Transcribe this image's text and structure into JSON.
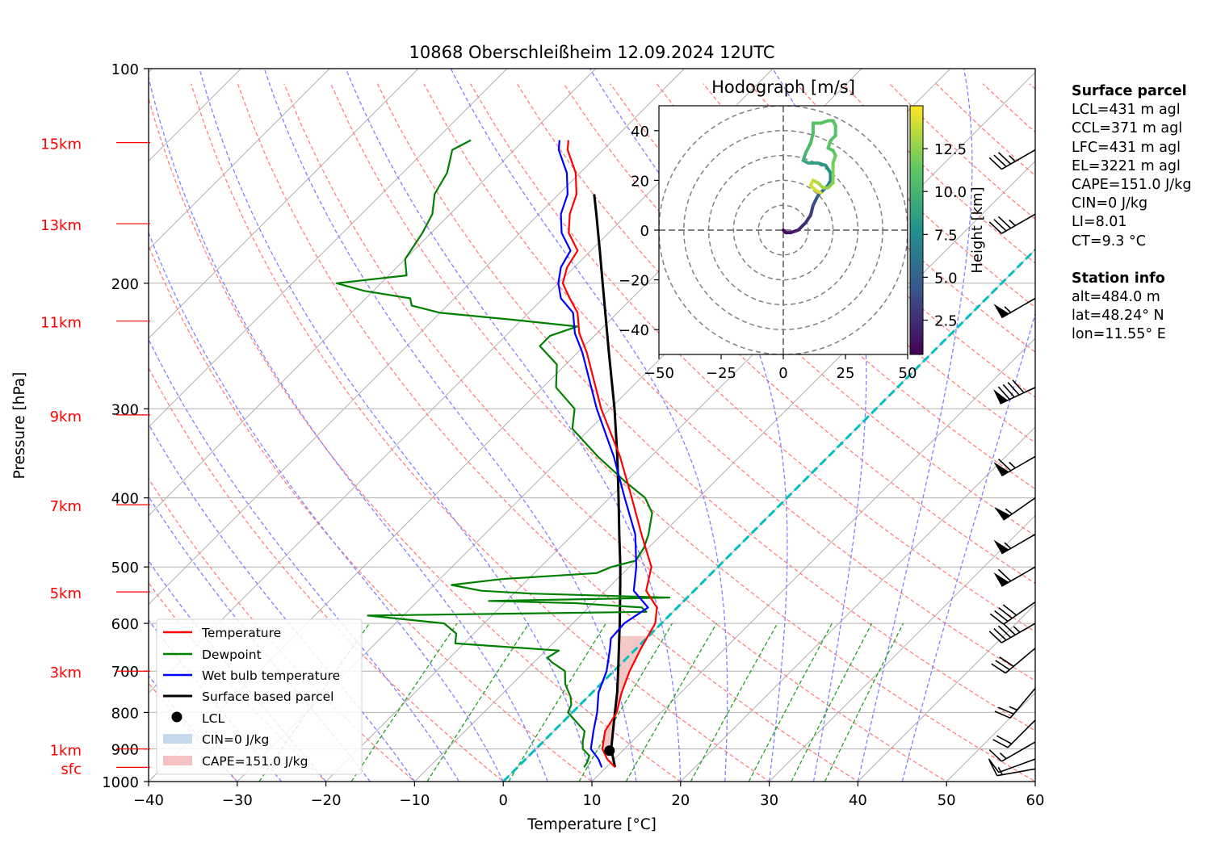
{
  "title": "10868 Oberschleißheim 12.09.2024 12UTC",
  "chart_data": {
    "type": "skew-t",
    "xlabel": "Temperature [°C]",
    "ylabel": "Pressure [hPa]",
    "xlim": [
      -40,
      60
    ],
    "ylim": [
      1000,
      100
    ],
    "x_ticks": [
      -40,
      -30,
      -20,
      -10,
      0,
      10,
      20,
      30,
      40,
      50,
      60
    ],
    "y_ticks": [
      100,
      200,
      300,
      400,
      500,
      600,
      700,
      800,
      900,
      1000
    ],
    "y_scale": "log",
    "height_labels": [
      {
        "label": "15km",
        "p": 127
      },
      {
        "label": "13km",
        "p": 165
      },
      {
        "label": "11km",
        "p": 226
      },
      {
        "label": "9km",
        "p": 306
      },
      {
        "label": "7km",
        "p": 409
      },
      {
        "label": "5km",
        "p": 542
      },
      {
        "label": "3km",
        "p": 700
      },
      {
        "label": "1km",
        "p": 900
      },
      {
        "label": "sfc",
        "p": 955
      }
    ],
    "temperature": [
      [
        955,
        11
      ],
      [
        930,
        9.2
      ],
      [
        900,
        7.5
      ],
      [
        850,
        5.8
      ],
      [
        800,
        5
      ],
      [
        750,
        3.3
      ],
      [
        700,
        1.8
      ],
      [
        650,
        0.5
      ],
      [
        600,
        -0.7
      ],
      [
        570,
        -2.3
      ],
      [
        540,
        -5.4
      ],
      [
        500,
        -7.5
      ],
      [
        450,
        -12.3
      ],
      [
        400,
        -17.5
      ],
      [
        350,
        -23.5
      ],
      [
        300,
        -31
      ],
      [
        250,
        -39
      ],
      [
        235,
        -42
      ],
      [
        220,
        -44.5
      ],
      [
        210,
        -47
      ],
      [
        200,
        -49.5
      ],
      [
        190,
        -50.8
      ],
      [
        180,
        -51.5
      ],
      [
        170,
        -54.5
      ],
      [
        160,
        -56.5
      ],
      [
        150,
        -58
      ],
      [
        140,
        -60.5
      ],
      [
        130,
        -64
      ],
      [
        126,
        -65
      ]
    ],
    "dewpoint": [
      [
        955,
        7.5
      ],
      [
        940,
        7.3
      ],
      [
        920,
        6.8
      ],
      [
        900,
        5.3
      ],
      [
        880,
        4.5
      ],
      [
        850,
        3.5
      ],
      [
        800,
        -0.5
      ],
      [
        780,
        -1
      ],
      [
        760,
        -2
      ],
      [
        730,
        -4
      ],
      [
        700,
        -5.5
      ],
      [
        680,
        -8
      ],
      [
        670,
        -9
      ],
      [
        655,
        -8.5
      ],
      [
        640,
        -21
      ],
      [
        620,
        -22
      ],
      [
        600,
        -24.5
      ],
      [
        585,
        -34
      ],
      [
        578,
        -3
      ],
      [
        570,
        -4
      ],
      [
        562,
        -12
      ],
      [
        558,
        -22
      ],
      [
        552,
        -2
      ],
      [
        545,
        -18
      ],
      [
        540,
        -24
      ],
      [
        530,
        -28
      ],
      [
        520,
        -23
      ],
      [
        510,
        -13
      ],
      [
        500,
        -12
      ],
      [
        490,
        -10
      ],
      [
        470,
        -10.5
      ],
      [
        450,
        -11.5
      ],
      [
        420,
        -13.5
      ],
      [
        400,
        -16
      ],
      [
        380,
        -20
      ],
      [
        350,
        -26
      ],
      [
        320,
        -32
      ],
      [
        300,
        -34
      ],
      [
        280,
        -38.5
      ],
      [
        260,
        -41
      ],
      [
        245,
        -45
      ],
      [
        237,
        -45
      ],
      [
        230,
        -43
      ],
      [
        225,
        -51
      ],
      [
        220,
        -60
      ],
      [
        215,
        -64
      ],
      [
        210,
        -65
      ],
      [
        205,
        -71
      ],
      [
        200,
        -75
      ],
      [
        195,
        -68
      ],
      [
        185,
        -70
      ],
      [
        170,
        -71
      ],
      [
        160,
        -72
      ],
      [
        150,
        -74
      ],
      [
        140,
        -75
      ],
      [
        130,
        -77
      ],
      [
        126,
        -76
      ]
    ],
    "wet_bulb": [
      [
        955,
        9.5
      ],
      [
        930,
        8.2
      ],
      [
        900,
        6.2
      ],
      [
        850,
        4.5
      ],
      [
        800,
        2.8
      ],
      [
        750,
        0.7
      ],
      [
        700,
        -0.8
      ],
      [
        650,
        -3
      ],
      [
        630,
        -4
      ],
      [
        600,
        -4.2
      ],
      [
        570,
        -3.3
      ],
      [
        540,
        -6.8
      ],
      [
        500,
        -9.2
      ],
      [
        450,
        -13
      ],
      [
        400,
        -18.3
      ],
      [
        350,
        -24.2
      ],
      [
        300,
        -31.5
      ],
      [
        250,
        -39.5
      ],
      [
        235,
        -42.5
      ],
      [
        220,
        -45
      ],
      [
        210,
        -48
      ],
      [
        200,
        -50
      ],
      [
        190,
        -51.5
      ],
      [
        180,
        -52.3
      ],
      [
        170,
        -55.3
      ],
      [
        160,
        -57.5
      ],
      [
        150,
        -59
      ],
      [
        140,
        -61.5
      ],
      [
        130,
        -65
      ],
      [
        126,
        -66
      ]
    ],
    "parcel_path": [
      [
        955,
        11
      ],
      [
        900,
        8.5
      ],
      [
        850,
        6.7
      ],
      [
        800,
        4.8
      ],
      [
        750,
        2.8
      ],
      [
        700,
        0.5
      ],
      [
        650,
        -2
      ],
      [
        600,
        -4.7
      ],
      [
        550,
        -7.7
      ],
      [
        500,
        -11
      ],
      [
        450,
        -14.8
      ],
      [
        400,
        -19
      ],
      [
        350,
        -23.8
      ],
      [
        300,
        -29.5
      ],
      [
        250,
        -36.5
      ],
      [
        200,
        -45
      ],
      [
        180,
        -49
      ],
      [
        160,
        -53.5
      ],
      [
        150,
        -56
      ]
    ],
    "lcl": {
      "p": 905,
      "t": 8.5
    },
    "legend": [
      "Temperature",
      "Dewpoint",
      "Wet bulb temperature",
      "Surface based parcel",
      "LCL",
      "CIN=0 J/kg",
      "CAPE=151.0 J/kg"
    ],
    "legend_position": "lower-left",
    "wind_barbs_kt": [
      {
        "p": 960,
        "speed": 15,
        "dir": 260
      },
      {
        "p": 930,
        "speed": 10,
        "dir": 250
      },
      {
        "p": 880,
        "speed": 15,
        "dir": 240
      },
      {
        "p": 820,
        "speed": 20,
        "dir": 225
      },
      {
        "p": 740,
        "speed": 25,
        "dir": 220
      },
      {
        "p": 650,
        "speed": 30,
        "dir": 230
      },
      {
        "p": 600,
        "speed": 45,
        "dir": 240
      },
      {
        "p": 560,
        "speed": 40,
        "dir": 235
      },
      {
        "p": 500,
        "speed": 60,
        "dir": 240
      },
      {
        "p": 450,
        "speed": 55,
        "dir": 240
      },
      {
        "p": 400,
        "speed": 55,
        "dir": 235
      },
      {
        "p": 350,
        "speed": 65,
        "dir": 240
      },
      {
        "p": 280,
        "speed": 90,
        "dir": 245
      },
      {
        "p": 210,
        "speed": 55,
        "dir": 240
      },
      {
        "p": 160,
        "speed": 35,
        "dir": 240
      },
      {
        "p": 130,
        "speed": 35,
        "dir": 240
      }
    ],
    "hodograph": {
      "title": "Hodograph [m/s]",
      "xlim": [
        -50,
        50
      ],
      "ylim": [
        -50,
        50
      ],
      "ticks": [
        -50,
        -25,
        0,
        25,
        50
      ],
      "y_ticks": [
        -40,
        -20,
        0,
        20,
        40
      ],
      "rings": [
        10,
        20,
        30,
        40,
        50
      ],
      "colorbar_label": "Height [km]",
      "colorbar_ticks": [
        "2.5",
        "5.0",
        "7.5",
        "10.0",
        "12.5"
      ],
      "colorbar_range": [
        0.5,
        15
      ],
      "trace": [
        [
          0,
          0,
          0.5
        ],
        [
          1,
          -1,
          0.8
        ],
        [
          3,
          -1,
          1.2
        ],
        [
          6,
          0,
          1.8
        ],
        [
          9,
          3,
          2.5
        ],
        [
          11,
          6,
          3
        ],
        [
          12,
          10,
          3.5
        ],
        [
          13,
          12,
          4
        ],
        [
          14,
          14,
          5
        ],
        [
          16,
          16,
          6
        ],
        [
          18,
          18,
          6.5
        ],
        [
          19,
          20,
          7
        ],
        [
          19,
          23,
          7.5
        ],
        [
          17,
          26,
          8
        ],
        [
          14,
          27,
          8.5
        ],
        [
          10,
          27,
          9
        ],
        [
          8,
          28,
          9.5
        ],
        [
          9,
          31,
          10
        ],
        [
          11,
          35,
          10.5
        ],
        [
          12,
          39,
          10.5
        ],
        [
          12,
          43,
          11
        ],
        [
          15,
          43,
          11
        ],
        [
          18,
          44,
          11
        ],
        [
          20,
          44,
          11
        ],
        [
          21,
          42,
          11
        ],
        [
          21,
          38,
          11
        ],
        [
          19,
          36,
          11
        ],
        [
          18,
          33,
          11
        ],
        [
          20,
          32,
          11
        ],
        [
          21,
          30,
          11.5
        ],
        [
          20,
          27,
          11.8
        ],
        [
          20,
          25,
          12
        ],
        [
          20,
          22,
          12.2
        ],
        [
          20,
          19,
          12.3
        ],
        [
          18,
          17,
          12.5
        ],
        [
          16,
          17,
          12.8
        ],
        [
          14,
          19,
          13
        ],
        [
          12,
          20,
          13.5
        ],
        [
          11,
          18,
          14
        ],
        [
          13,
          16,
          14
        ],
        [
          15,
          15,
          14
        ]
      ]
    }
  },
  "info": {
    "surface_title": "Surface parcel",
    "surface_lines": [
      "LCL=431 m agl",
      "CCL=371 m agl",
      "LFC=431 m agl",
      "EL=3221 m agl",
      "CAPE=151.0 J/kg",
      "CIN=0 J/kg",
      "LI=8.01",
      "CT=9.3 °C"
    ],
    "station_title": "Station info",
    "station_lines": [
      "alt=484.0 m",
      "lat=48.24° N",
      "lon=11.55° E"
    ]
  },
  "colors": {
    "temperature": "#ff0000",
    "dewpoint": "#008000",
    "wet_bulb": "#0000ff",
    "parcel": "#000000",
    "dry_adiabat": "#ff8080",
    "moist_adiabat": "#8080ff",
    "mixing_ratio": "#22a022",
    "freezing_isotherm": "#00bfbf",
    "cape_fill": "#f4c2c2",
    "cin_fill": "#c6d9ec",
    "height_label": "#ff0000"
  }
}
